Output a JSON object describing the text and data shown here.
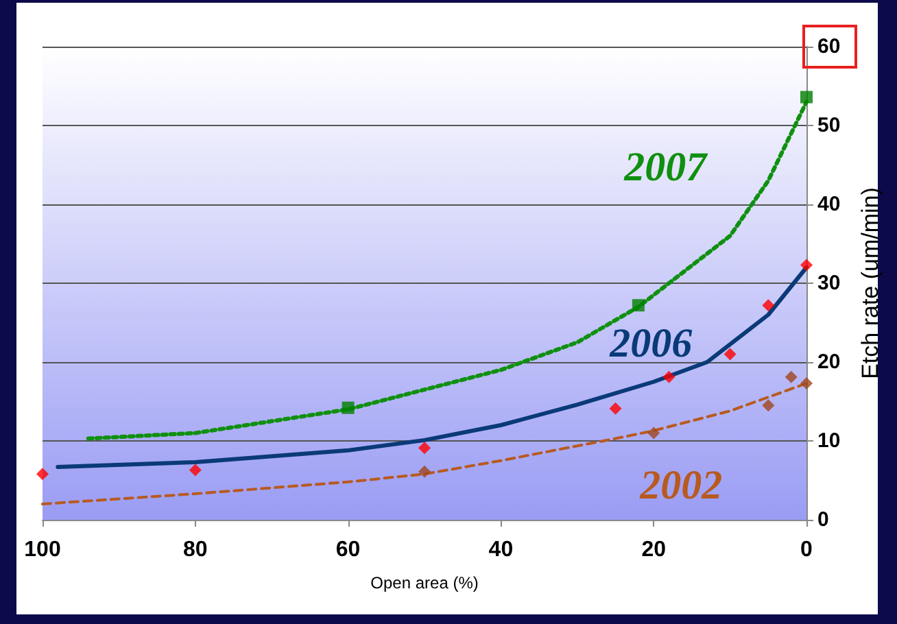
{
  "chart_data": {
    "type": "scatter",
    "xlabel": "Open area (%)",
    "ylabel": "Etch rate (um/min)",
    "xlim": [
      100,
      0
    ],
    "xticks": [
      100,
      80,
      60,
      40,
      20,
      0
    ],
    "ylim": [
      0,
      60
    ],
    "yticks": [
      0,
      10,
      20,
      30,
      40,
      50,
      60
    ],
    "grid": "y",
    "series": [
      {
        "type": "line",
        "name": "2007",
        "color": "#109010",
        "marker": "none",
        "line_style": "dotted",
        "x": [
          94,
          80,
          60,
          40,
          30,
          22,
          10,
          5,
          0
        ],
        "values": [
          10.3,
          11,
          14,
          19,
          22.5,
          27,
          36,
          43,
          53
        ]
      },
      {
        "type": "line",
        "name": "2006",
        "color": "#0a3a78",
        "marker": "none",
        "line_style": "solid",
        "x": [
          98,
          80,
          60,
          50,
          40,
          30,
          20,
          13,
          5,
          0
        ],
        "values": [
          6.7,
          7.3,
          8.8,
          10.1,
          12,
          14.6,
          17.5,
          20,
          26,
          32
        ]
      },
      {
        "type": "line",
        "name": "2002",
        "color": "#b85a20",
        "marker": "none",
        "line_style": "dashed",
        "x": [
          100,
          80,
          60,
          50,
          40,
          25,
          20,
          10,
          0
        ],
        "values": [
          2,
          3.3,
          4.8,
          5.8,
          7.5,
          10.3,
          11.3,
          13.8,
          17.3
        ]
      },
      {
        "color": "#008000",
        "marker": "square",
        "x": [
          60,
          22,
          0
        ],
        "values": [
          14.2,
          27.2,
          53.6
        ]
      },
      {
        "color": "#ff0000",
        "marker": "diamond",
        "x": [
          100,
          80,
          50,
          25,
          18,
          10,
          5,
          0
        ],
        "values": [
          5.8,
          6.3,
          9.1,
          14.1,
          18.1,
          21,
          27.2,
          32.3
        ]
      },
      {
        "color": "#a0461e",
        "marker": "diamond",
        "x": [
          50,
          20,
          5,
          2,
          0
        ],
        "values": [
          6.1,
          11,
          14.5,
          18.1,
          17.3
        ]
      }
    ]
  }
}
